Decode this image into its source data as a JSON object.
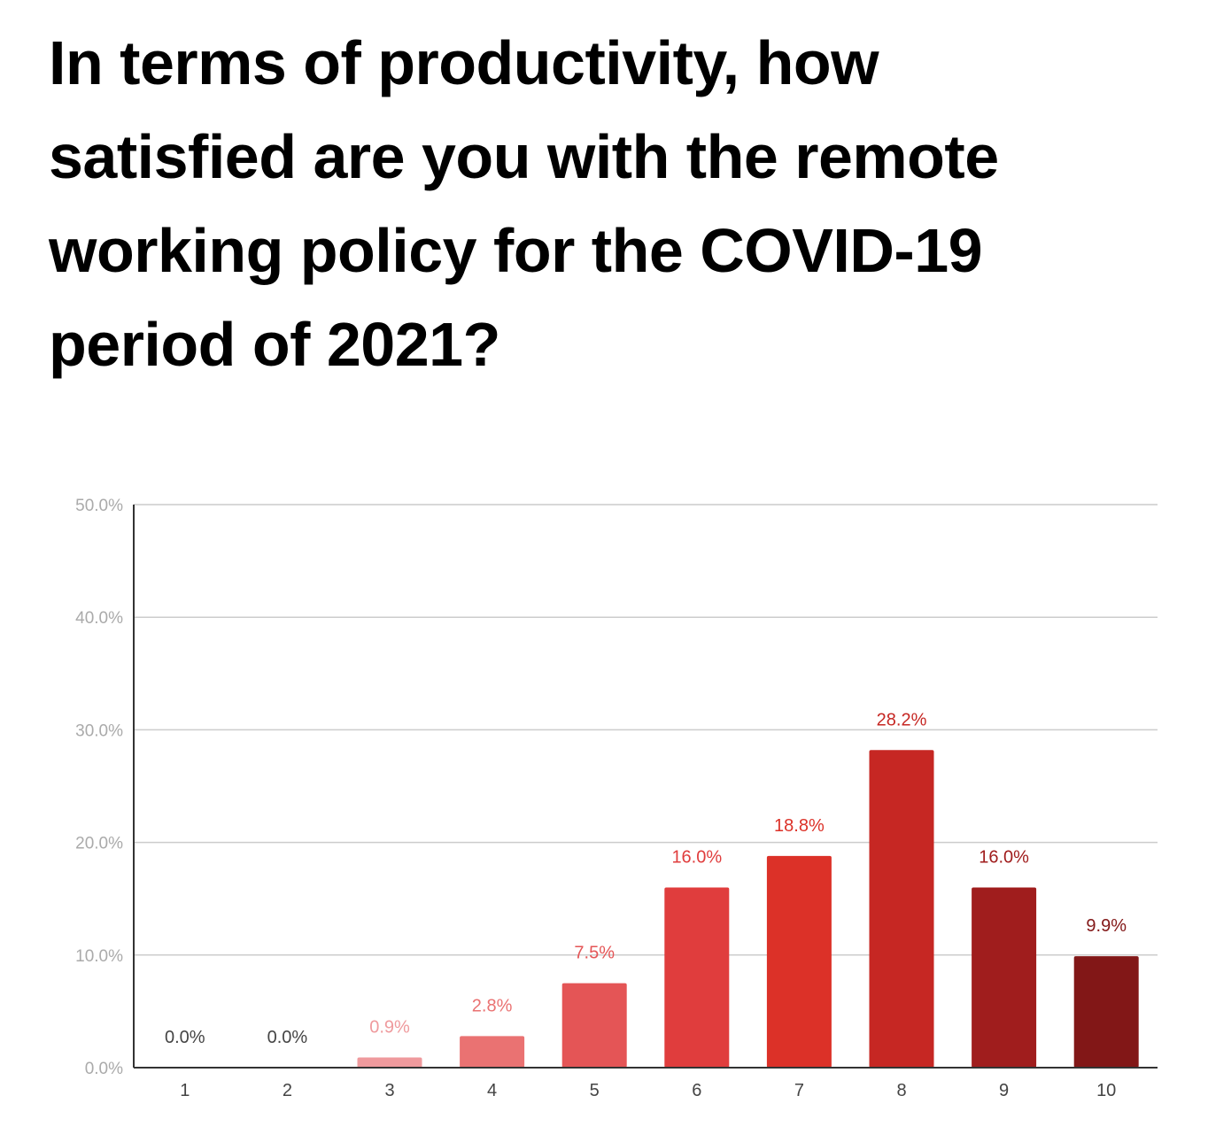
{
  "title": "In terms of productivity, how satisfied are you with the remote working policy for the COVID-19 period of 2021?",
  "chart_data": {
    "type": "bar",
    "categories": [
      "1",
      "2",
      "3",
      "4",
      "5",
      "6",
      "7",
      "8",
      "9",
      "10"
    ],
    "values": [
      0.0,
      0.0,
      0.9,
      2.8,
      7.5,
      16.0,
      18.8,
      28.2,
      16.0,
      9.9
    ],
    "value_labels": [
      "0.0%",
      "0.0%",
      "0.9%",
      "2.8%",
      "7.5%",
      "16.0%",
      "18.8%",
      "28.2%",
      "16.0%",
      "9.9%"
    ],
    "ylim": [
      0,
      50
    ],
    "yticks": [
      0,
      10,
      20,
      30,
      40,
      50
    ],
    "ytick_labels": [
      "0.0%",
      "10.0%",
      "20.0%",
      "30.0%",
      "40.0%",
      "50.0%"
    ],
    "grid": true,
    "xlabel": "",
    "ylabel": "",
    "bar_colors": [
      "#f2a3a6",
      "#f2a3a6",
      "#ef9a9d",
      "#ea7272",
      "#e45556",
      "#e03d3d",
      "#dc3128",
      "#c62723",
      "#a01d1d",
      "#821717"
    ],
    "label_colors": [
      "#444444",
      "#444444",
      "#ef9a9d",
      "#ea7272",
      "#e45556",
      "#e03d3d",
      "#dc3128",
      "#c62723",
      "#a01d1d",
      "#821717"
    ]
  }
}
